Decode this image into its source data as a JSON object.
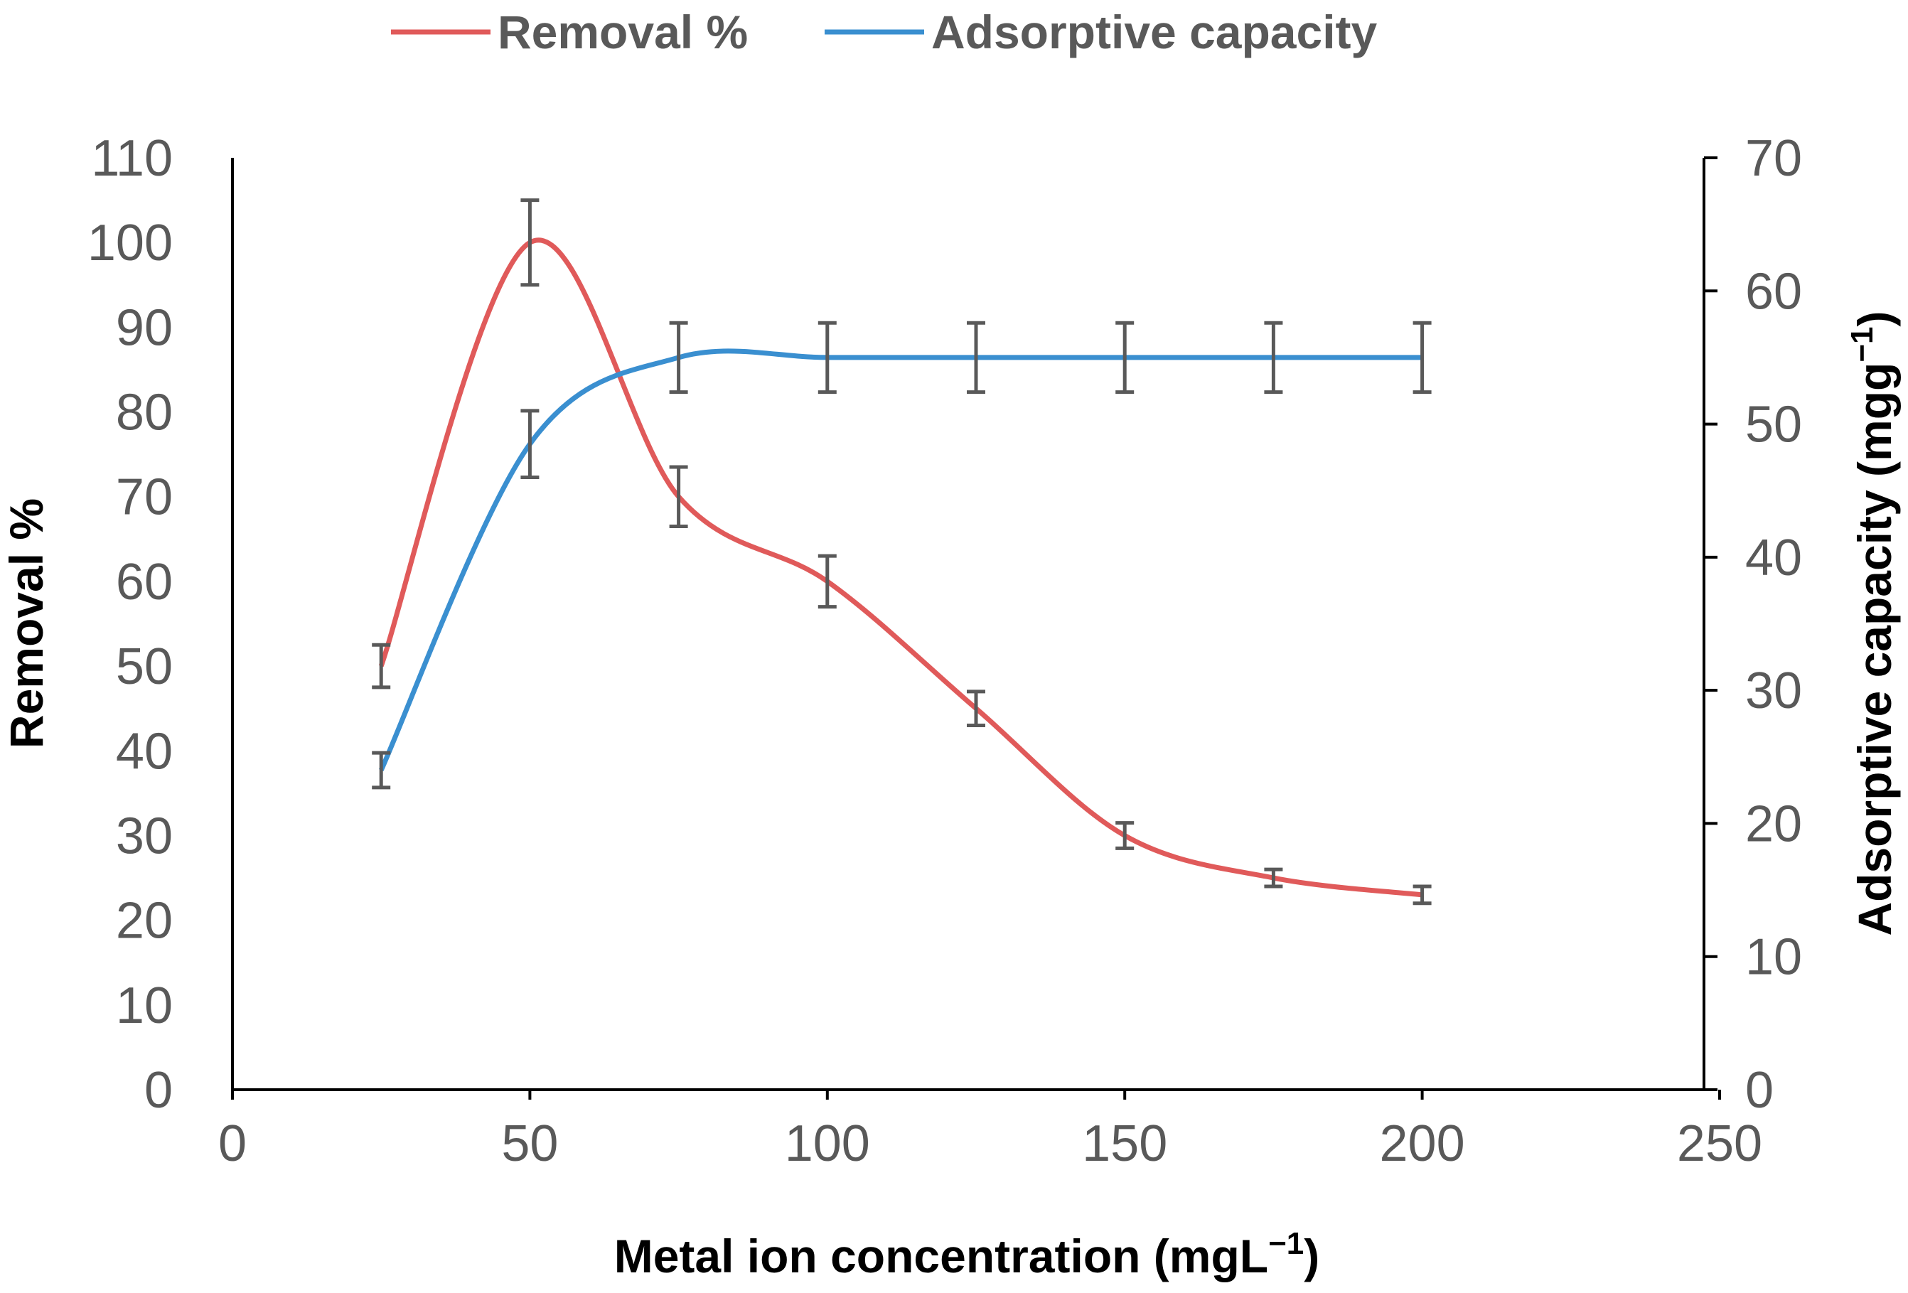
{
  "chart_data": {
    "type": "line",
    "title": "",
    "xlabel": "Metal ion concentration (mgL",
    "xlabel_sup": "−1",
    "xlabel_end": ")",
    "ylabel": "Removal %",
    "y2label": "Adsorptive capacity (mgg",
    "y2label_sup": "−1",
    "y2label_end": ")",
    "xlim": [
      0,
      250
    ],
    "ylim": [
      0,
      110
    ],
    "y2lim": [
      0,
      70
    ],
    "xticks": [
      "0",
      "50",
      "100",
      "150",
      "200",
      "250"
    ],
    "yticks": [
      "0",
      "10",
      "20",
      "30",
      "40",
      "50",
      "60",
      "70",
      "80",
      "90",
      "100",
      "110"
    ],
    "y2ticks": [
      "0",
      "10",
      "20",
      "30",
      "40",
      "50",
      "60",
      "70"
    ],
    "grid": false,
    "legend_position": "top",
    "series": [
      {
        "name": "Removal %",
        "axis": "left",
        "color": "#E05A5A",
        "x": [
          25,
          50,
          75,
          100,
          125,
          150,
          175,
          200
        ],
        "values": [
          50,
          100,
          70,
          60,
          45,
          30,
          25,
          23
        ],
        "errors": [
          2.5,
          5,
          3.5,
          3,
          2,
          1.5,
          1,
          1
        ]
      },
      {
        "name": "Adsorptive capacity",
        "axis": "right",
        "color": "#3A8FD0",
        "x": [
          25,
          50,
          75,
          100,
          125,
          150,
          175,
          200
        ],
        "values": [
          24,
          48.5,
          55,
          55,
          55,
          55,
          55,
          55
        ],
        "errors": [
          1.3,
          2.5,
          2.6,
          2.6,
          2.6,
          2.6,
          2.6,
          2.6
        ]
      }
    ]
  }
}
